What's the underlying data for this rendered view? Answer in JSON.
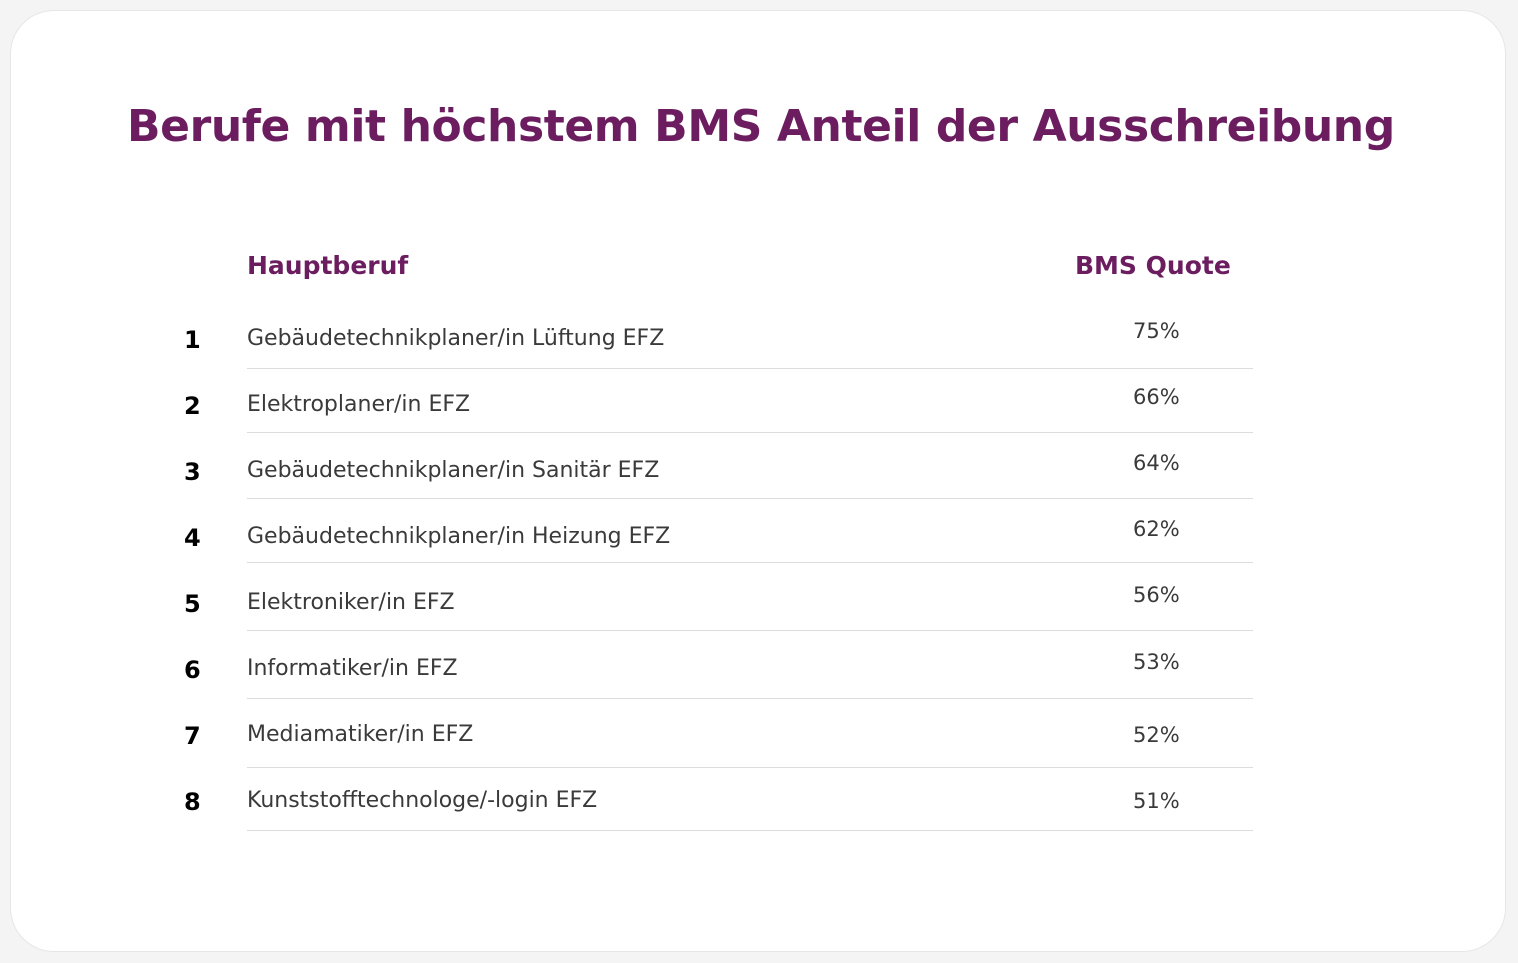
{
  "colors": {
    "accent": "#6b1d5f",
    "text": "#3a3a3a",
    "rank": "#000000",
    "divider": "#dcdcdc"
  },
  "chart_data": {
    "type": "table",
    "title": "Berufe mit höchstem BMS Anteil der Ausschreibung",
    "columns": [
      "Hauptberuf",
      "BMS Quote"
    ],
    "rows": [
      {
        "rank": "1",
        "job": "Gebäudetechnikplaner/in Lüftung EFZ",
        "quote": "75%",
        "value": 75
      },
      {
        "rank": "2",
        "job": "Elektroplaner/in EFZ",
        "quote": "66%",
        "value": 66
      },
      {
        "rank": "3",
        "job": "Gebäudetechnikplaner/in Sanitär EFZ",
        "quote": "64%",
        "value": 64
      },
      {
        "rank": "4",
        "job": "Gebäudetechnikplaner/in Heizung EFZ",
        "quote": "62%",
        "value": 62
      },
      {
        "rank": "5",
        "job": "Elektroniker/in EFZ",
        "quote": "56%",
        "value": 56
      },
      {
        "rank": "6",
        "job": "Informatiker/in EFZ",
        "quote": "53%",
        "value": 53
      },
      {
        "rank": "7",
        "job": "Mediamatiker/in EFZ",
        "quote": "52%",
        "value": 52
      },
      {
        "rank": "8",
        "job": "Kunststofftechnologe/-login EFZ",
        "quote": "51%",
        "value": 51
      }
    ]
  }
}
